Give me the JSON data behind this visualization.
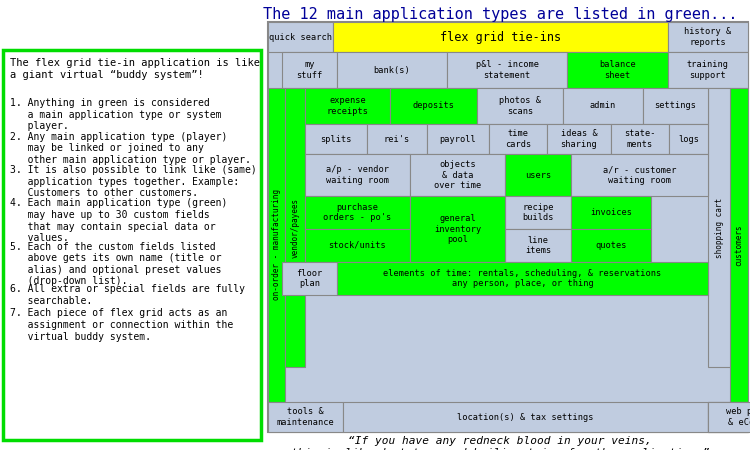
{
  "title": "The 12 main application types are listed in green...",
  "left_title": "The flex grid tie-in application is like\na giant virtual “buddy system”!",
  "left_points": [
    "1. Anything in green is considered\n   a main application type or system\n   player.",
    "2. Any main application type (player)\n   may be linked or joined to any\n   other main application type or player.",
    "3. It is also possible to link like (same)\n   application types together. Example:\n   Customers to other customers.",
    "4. Each main application type (green)\n   may have up to 30 custom fields\n   that may contain special data or\n   values.",
    "5. Each of the custom fields listed\n   above gets its own name (title or\n   alias) and optional preset values\n   (drop-down list).",
    "6. All extra or special fields are fully\n   searchable.",
    "7. Each piece of flex grid acts as an\n   assignment or connection within the\n   virtual buddy system."
  ],
  "quote": "“If you have any redneck blood in your veins,\nthis is like duct-tape and bailing twine for the application.”",
  "green": "#00ff00",
  "yellow": "#ffff00",
  "light_blue": "#c0cce0",
  "white": "#ffffff",
  "border_color": "#888888",
  "left_box_border": "#00dd00",
  "text_color_left": "#000099",
  "title_color": "#000099"
}
